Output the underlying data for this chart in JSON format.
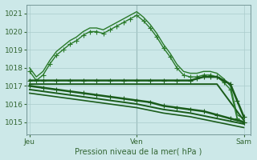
{
  "background_color": "#cce8e8",
  "grid_color": "#aacccc",
  "plot_bg": "#cce8e8",
  "ylabel_ticks": [
    1015,
    1016,
    1017,
    1018,
    1019,
    1020,
    1021
  ],
  "ylim": [
    1014.3,
    1021.5
  ],
  "xlabel": "Pression niveau de la mer( hPa )",
  "xtick_labels": [
    "Jeu",
    "Ven",
    "Sam"
  ],
  "xtick_positions": [
    0,
    16,
    32
  ],
  "xlim": [
    -0.5,
    33
  ],
  "day_lines": [
    16
  ],
  "series": [
    {
      "x": [
        0,
        1,
        2,
        3,
        4,
        5,
        6,
        7,
        8,
        9,
        10,
        11,
        12,
        13,
        14,
        15,
        16,
        17,
        18,
        19,
        20,
        21,
        22,
        23,
        24,
        25,
        26,
        27,
        28,
        29,
        30,
        31,
        32
      ],
      "y": [
        1017.8,
        1017.3,
        1017.6,
        1018.2,
        1018.7,
        1019.0,
        1019.3,
        1019.5,
        1019.8,
        1020.0,
        1020.0,
        1019.9,
        1020.1,
        1020.3,
        1020.5,
        1020.7,
        1020.9,
        1020.6,
        1020.2,
        1019.7,
        1019.1,
        1018.6,
        1018.0,
        1017.6,
        1017.5,
        1017.5,
        1017.6,
        1017.6,
        1017.5,
        1017.2,
        1016.8,
        1015.2,
        1015.0
      ],
      "color": "#2a7a2a",
      "lw": 1.0,
      "marker": "+",
      "ms": 4.0
    },
    {
      "x": [
        0,
        1,
        2,
        3,
        4,
        5,
        6,
        7,
        8,
        9,
        10,
        11,
        12,
        13,
        14,
        15,
        16,
        17,
        18,
        19,
        20,
        21,
        22,
        23,
        24,
        25,
        26,
        27,
        28,
        29,
        30,
        31,
        32
      ],
      "y": [
        1018.0,
        1017.5,
        1017.8,
        1018.4,
        1018.9,
        1019.2,
        1019.5,
        1019.7,
        1020.0,
        1020.2,
        1020.2,
        1020.1,
        1020.3,
        1020.5,
        1020.7,
        1020.9,
        1021.1,
        1020.8,
        1020.4,
        1019.9,
        1019.3,
        1018.8,
        1018.2,
        1017.8,
        1017.7,
        1017.7,
        1017.8,
        1017.8,
        1017.7,
        1017.4,
        1017.0,
        1015.4,
        1015.2
      ],
      "color": "#2a7a2a",
      "lw": 1.0,
      "marker": null,
      "ms": 0
    },
    {
      "x": [
        0,
        2,
        4,
        6,
        8,
        10,
        12,
        14,
        16,
        18,
        20,
        22,
        24,
        25,
        26,
        27,
        28,
        29,
        30,
        31,
        32
      ],
      "y": [
        1017.3,
        1017.3,
        1017.3,
        1017.3,
        1017.3,
        1017.3,
        1017.3,
        1017.3,
        1017.3,
        1017.3,
        1017.3,
        1017.3,
        1017.3,
        1017.4,
        1017.5,
        1017.5,
        1017.5,
        1017.3,
        1017.1,
        1016.2,
        1015.3
      ],
      "color": "#1a5c1a",
      "lw": 1.8,
      "marker": "+",
      "ms": 4.0
    },
    {
      "x": [
        0,
        4,
        8,
        12,
        16,
        20,
        24,
        28,
        32
      ],
      "y": [
        1017.1,
        1017.1,
        1017.1,
        1017.1,
        1017.1,
        1017.1,
        1017.1,
        1017.1,
        1015.1
      ],
      "color": "#1a5c1a",
      "lw": 1.4,
      "marker": null,
      "ms": 0
    },
    {
      "x": [
        0,
        2,
        4,
        6,
        8,
        10,
        12,
        14,
        16,
        18,
        20,
        22,
        24,
        26,
        28,
        30,
        32
      ],
      "y": [
        1017.0,
        1016.9,
        1016.8,
        1016.7,
        1016.6,
        1016.5,
        1016.4,
        1016.3,
        1016.2,
        1016.1,
        1015.9,
        1015.8,
        1015.7,
        1015.6,
        1015.4,
        1015.2,
        1015.0
      ],
      "color": "#1a5c1a",
      "lw": 1.8,
      "marker": "+",
      "ms": 4.0
    },
    {
      "x": [
        0,
        4,
        8,
        12,
        16,
        20,
        24,
        28,
        32
      ],
      "y": [
        1016.8,
        1016.6,
        1016.4,
        1016.2,
        1016.0,
        1015.7,
        1015.5,
        1015.2,
        1014.9
      ],
      "color": "#1a5c1a",
      "lw": 1.4,
      "marker": null,
      "ms": 0
    },
    {
      "x": [
        0,
        4,
        8,
        12,
        16,
        20,
        24,
        28,
        32
      ],
      "y": [
        1016.6,
        1016.4,
        1016.2,
        1016.0,
        1015.8,
        1015.5,
        1015.3,
        1015.0,
        1014.7
      ],
      "color": "#1a5c1a",
      "lw": 1.2,
      "marker": null,
      "ms": 0
    }
  ]
}
